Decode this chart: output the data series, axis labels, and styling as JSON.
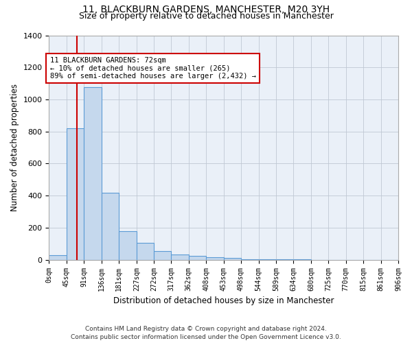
{
  "title": "11, BLACKBURN GARDENS, MANCHESTER, M20 3YH",
  "subtitle": "Size of property relative to detached houses in Manchester",
  "xlabel": "Distribution of detached houses by size in Manchester",
  "ylabel": "Number of detached properties",
  "footer_line1": "Contains HM Land Registry data © Crown copyright and database right 2024.",
  "footer_line2": "Contains public sector information licensed under the Open Government Licence v3.0.",
  "bar_edges": [
    0,
    45,
    91,
    136,
    181,
    227,
    272,
    317,
    362,
    408,
    453,
    498,
    544,
    589,
    634,
    680,
    725,
    770,
    815,
    861,
    906
  ],
  "bar_heights": [
    30,
    820,
    1075,
    420,
    180,
    105,
    55,
    35,
    25,
    15,
    10,
    5,
    3,
    2,
    1,
    0,
    0,
    0,
    0,
    0
  ],
  "bar_color": "#c5d8ed",
  "bar_edge_color": "#5b9bd5",
  "property_size": 72,
  "vline_color": "#cc0000",
  "annotation_text": "11 BLACKBURN GARDENS: 72sqm\n← 10% of detached houses are smaller (265)\n89% of semi-detached houses are larger (2,432) →",
  "annotation_box_color": "#cc0000",
  "ylim": [
    0,
    1400
  ],
  "yticks": [
    0,
    200,
    400,
    600,
    800,
    1000,
    1200,
    1400
  ],
  "xtick_labels": [
    "0sqm",
    "45sqm",
    "91sqm",
    "136sqm",
    "181sqm",
    "227sqm",
    "272sqm",
    "317sqm",
    "362sqm",
    "408sqm",
    "453sqm",
    "498sqm",
    "544sqm",
    "589sqm",
    "634sqm",
    "680sqm",
    "725sqm",
    "770sqm",
    "815sqm",
    "861sqm",
    "906sqm"
  ],
  "background_color": "#ffffff",
  "plot_bg_color": "#eaf0f8",
  "grid_color": "#c0c8d4"
}
